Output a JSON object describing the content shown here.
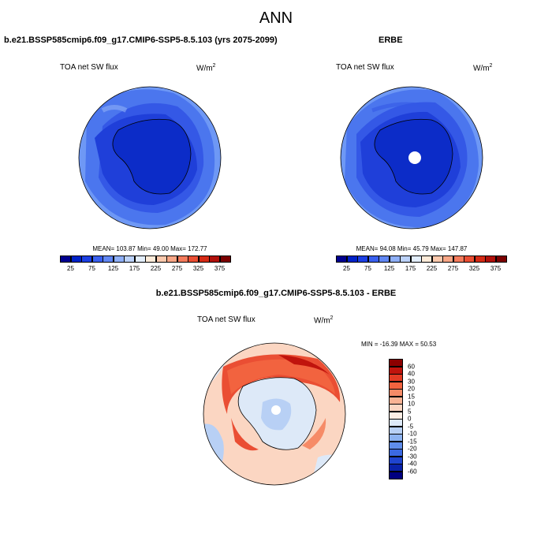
{
  "title": "ANN",
  "panels": [
    {
      "title": "b.e21.BSSP585cmip6.f09_g17.CMIP6-SSP5-8.5.103 (yrs 2075-2099)",
      "variable": "TOA net SW flux",
      "units": "W/m",
      "units_sup": "2",
      "stats": "MEAN= 103.87  Min=  49.00  Max= 172.77"
    },
    {
      "title": "ERBE",
      "variable": "TOA net SW flux",
      "units": "W/m",
      "units_sup": "2",
      "stats": "MEAN=  94.08  Min=  45.79  Max= 147.87"
    },
    {
      "title": "b.e21.BSSP585cmip6.f09_g17.CMIP6-SSP5-8.5.103 - ERBE",
      "variable": "TOA net SW flux",
      "units": "W/m",
      "units_sup": "2",
      "stats": "MIN = -16.39 MAX =  50.53"
    }
  ],
  "abs_colorbar": {
    "colors": [
      "#00008f",
      "#0022c8",
      "#1c3fe3",
      "#3a60ef",
      "#6187f3",
      "#8eaff7",
      "#bcd2f9",
      "#e3eefb",
      "#fdebd9",
      "#fbc9ad",
      "#f8a686",
      "#f47b5c",
      "#ea4e33",
      "#d52a15",
      "#b0100a",
      "#7b0000"
    ],
    "labels": [
      "25",
      "75",
      "125",
      "175",
      "225",
      "275",
      "325",
      "375"
    ]
  },
  "diff_colorbar": {
    "colors": [
      "#8b0000",
      "#c0140d",
      "#e33b24",
      "#f2633f",
      "#f68b67",
      "#f9b394",
      "#fbd6c2",
      "#fdeee5",
      "#dde9f8",
      "#b8d0f5",
      "#8db3f1",
      "#5f8deb",
      "#3b69e2",
      "#1f44cf",
      "#0a22aa",
      "#000080"
    ],
    "labels": [
      "60",
      "40",
      "30",
      "20",
      "15",
      "10",
      "5",
      "0",
      "-5",
      "-10",
      "-15",
      "-20",
      "-30",
      "-40",
      "-60"
    ]
  }
}
